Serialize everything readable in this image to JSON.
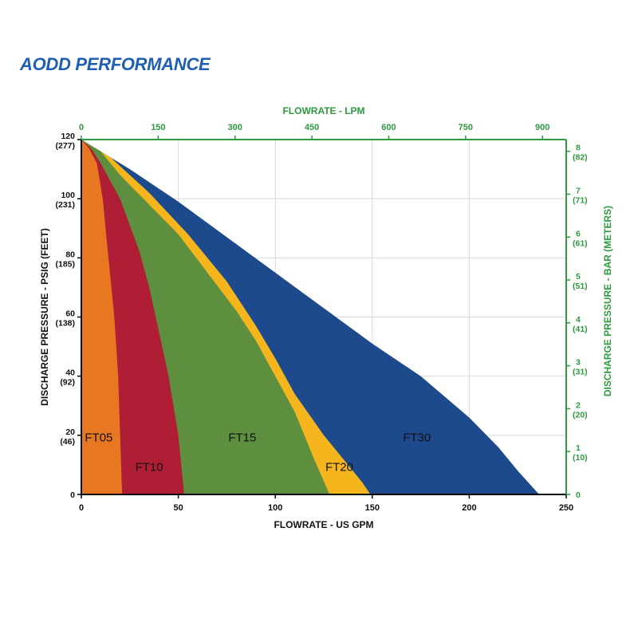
{
  "page_title": "AODD PERFORMANCE",
  "colors": {
    "title": "#1f5fb3",
    "top_axis": "#2e9a3e",
    "right_axis": "#2e9a3e",
    "FT05": "#e87722",
    "FT10": "#b01e35",
    "FT15": "#5e8f3e",
    "FT20": "#f5b51c",
    "FT30": "#1d4a8c"
  },
  "chart_data": {
    "type": "area",
    "title": "AODD PERFORMANCE",
    "xlabel": "FLOWRATE - US GPM",
    "ylabel": "DISCHARGE PRESSURE - PSIG (FEET)",
    "x2label": "FLOWRATE - LPM",
    "y2label": "DISCHARGE PRESSURE - BAR (METERS)",
    "xlim": [
      0,
      250
    ],
    "ylim": [
      0,
      120
    ],
    "x_ticks": [
      "0",
      "50",
      "100",
      "150",
      "200",
      "250"
    ],
    "x_tick_values": [
      0,
      50,
      100,
      150,
      200,
      250
    ],
    "y_ticks": [
      {
        "value": 0,
        "psi": "0",
        "feet": ""
      },
      {
        "value": 20,
        "psi": "20",
        "feet": "(46)"
      },
      {
        "value": 40,
        "psi": "40",
        "feet": "(92)"
      },
      {
        "value": 60,
        "psi": "60",
        "feet": "(138)"
      },
      {
        "value": 80,
        "psi": "80",
        "feet": "(185)"
      },
      {
        "value": 100,
        "psi": "100",
        "feet": "(231)"
      },
      {
        "value": 120,
        "psi": "120",
        "feet": "(277)"
      }
    ],
    "top_ticks": [
      {
        "lpm": 0,
        "label": "0"
      },
      {
        "lpm": 150,
        "label": "150"
      },
      {
        "lpm": 300,
        "label": "300"
      },
      {
        "lpm": 450,
        "label": "450"
      },
      {
        "lpm": 600,
        "label": "600"
      },
      {
        "lpm": 750,
        "label": "750"
      },
      {
        "lpm": 900,
        "label": "900"
      }
    ],
    "right_ticks": [
      {
        "bar": 0,
        "label": "0",
        "meters": ""
      },
      {
        "bar": 1,
        "label": "1",
        "meters": "(10)"
      },
      {
        "bar": 2,
        "label": "2",
        "meters": "(20)"
      },
      {
        "bar": 3,
        "label": "3",
        "meters": "(31)"
      },
      {
        "bar": 4,
        "label": "4",
        "meters": "(41)"
      },
      {
        "bar": 5,
        "label": "5",
        "meters": "(51)"
      },
      {
        "bar": 6,
        "label": "6",
        "meters": "(61)"
      },
      {
        "bar": 7,
        "label": "7",
        "meters": "(71)"
      },
      {
        "bar": 8,
        "label": "8",
        "meters": "(82)"
      }
    ],
    "grid": true,
    "series": [
      {
        "name": "FT30",
        "color": "#1d4a8c",
        "label_at": [
          173,
          18
        ],
        "x": [
          0,
          25,
          50,
          75,
          100,
          125,
          150,
          175,
          200,
          215,
          225,
          236
        ],
        "y": [
          120,
          110,
          99,
          87,
          75,
          63,
          51,
          40,
          26,
          16,
          8,
          0
        ]
      },
      {
        "name": "FT20",
        "color": "#f5b51c",
        "label_at": [
          133,
          8
        ],
        "x": [
          0,
          15,
          35,
          55,
          75,
          90,
          100,
          110,
          125,
          135,
          145,
          149
        ],
        "y": [
          120,
          114,
          102,
          88,
          72,
          57,
          46,
          34,
          20,
          12,
          4,
          0
        ]
      },
      {
        "name": "FT15",
        "color": "#5e8f3e",
        "label_at": [
          83,
          18
        ],
        "x": [
          0,
          10,
          20,
          35,
          50,
          65,
          80,
          90,
          100,
          110,
          120,
          128
        ],
        "y": [
          120,
          116,
          108,
          98,
          88,
          75,
          62,
          52,
          40,
          28,
          12,
          0
        ]
      },
      {
        "name": "FT10",
        "color": "#b01e35",
        "label_at": [
          35,
          8
        ],
        "x": [
          0,
          5,
          10,
          20,
          30,
          35,
          40,
          45,
          50,
          53
        ],
        "y": [
          120,
          117,
          112,
          100,
          82,
          70,
          55,
          40,
          20,
          0
        ]
      },
      {
        "name": "FT05",
        "color": "#e87722",
        "label_at": [
          9,
          18
        ],
        "x": [
          0,
          4,
          8,
          11,
          14,
          17,
          19,
          20,
          21
        ],
        "y": [
          120,
          117,
          112,
          100,
          80,
          60,
          40,
          20,
          0
        ]
      }
    ]
  }
}
